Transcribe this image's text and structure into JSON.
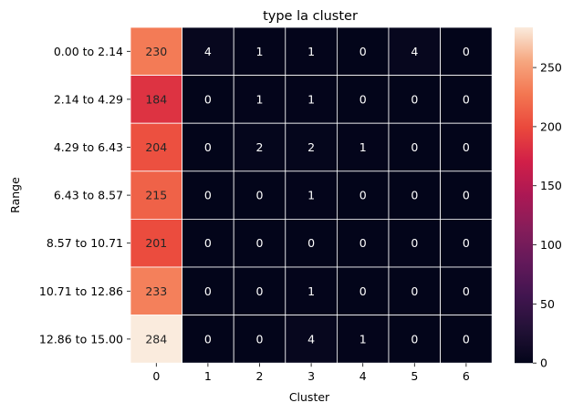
{
  "chart_data": {
    "type": "heatmap",
    "title": "type la cluster",
    "xlabel": "Cluster",
    "ylabel": "Range",
    "x_categories": [
      "0",
      "1",
      "2",
      "3",
      "4",
      "5",
      "6"
    ],
    "y_categories": [
      "0.00 to 2.14",
      "2.14 to 4.29",
      "4.29 to 6.43",
      "6.43 to 8.57",
      "8.57 to 10.71",
      "10.71 to 12.86",
      "12.86 to 15.00"
    ],
    "values": [
      [
        230,
        4,
        1,
        1,
        0,
        4,
        0
      ],
      [
        184,
        0,
        1,
        1,
        0,
        0,
        0
      ],
      [
        204,
        0,
        2,
        2,
        1,
        0,
        0
      ],
      [
        215,
        0,
        0,
        1,
        0,
        0,
        0
      ],
      [
        201,
        0,
        0,
        0,
        0,
        0,
        0
      ],
      [
        233,
        0,
        0,
        1,
        0,
        0,
        0
      ],
      [
        284,
        0,
        0,
        4,
        1,
        0,
        0
      ]
    ],
    "colorbar": {
      "range": [
        0,
        284
      ],
      "ticks": [
        0,
        50,
        100,
        150,
        200,
        250
      ],
      "colormap": "rocket"
    },
    "grid": false,
    "cell_annotations": true
  }
}
